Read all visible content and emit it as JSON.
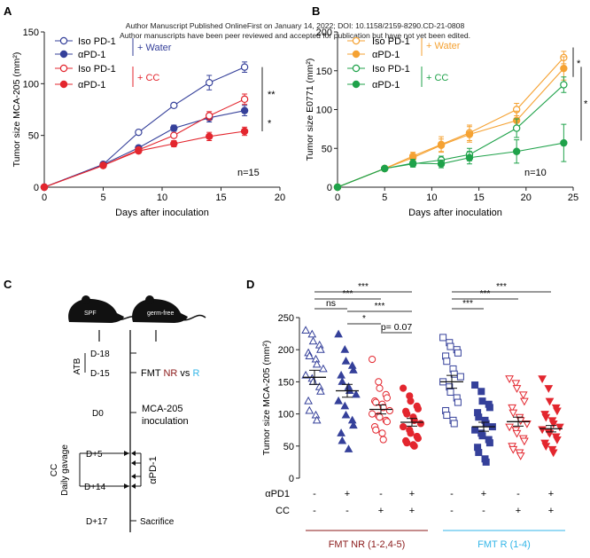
{
  "header": {
    "line1": "Author Manuscript Published OnlineFirst on January 14, 2022; DOI: 10.1158/2159-8290.CD-21-0808",
    "line2": "Author manuscripts have been peer reviewed and accepted for publication but have not yet been edited."
  },
  "colors": {
    "navy": "#35409a",
    "red": "#e3262e",
    "orange": "#f5a233",
    "green": "#1fa24a",
    "teal": "#3fb8b0",
    "gray": "#555555",
    "cyan": "#33b6e8",
    "darkred": "#8b1a1a"
  },
  "chart_data": [
    {
      "panel": "A",
      "type": "line",
      "xlabel": "Days after inoculation",
      "ylabel": "Tumor size MCA-205 (mm²)",
      "xlim": [
        0,
        20
      ],
      "ylim": [
        0,
        150
      ],
      "xticks": [
        0,
        5,
        10,
        15,
        20
      ],
      "yticks": [
        0,
        50,
        100,
        150
      ],
      "x": [
        0,
        5,
        8,
        11,
        14,
        17
      ],
      "series": [
        {
          "name": "Iso PD-1",
          "group": "water",
          "color": "#35409a",
          "fill": "open",
          "values": [
            0,
            22,
            53,
            79,
            101,
            116
          ],
          "err": [
            0,
            1,
            2,
            1,
            7,
            5
          ]
        },
        {
          "name": "αPD-1",
          "group": "water",
          "color": "#35409a",
          "fill": "solid",
          "values": [
            0,
            22,
            38,
            57,
            67,
            74
          ],
          "err": [
            0,
            1,
            2,
            3,
            4,
            5
          ]
        },
        {
          "name": "Iso PD-1",
          "group": "cc",
          "color": "#e3262e",
          "fill": "open",
          "values": [
            0,
            21,
            36,
            50,
            69,
            85
          ],
          "err": [
            0,
            1,
            2,
            2,
            4,
            5
          ]
        },
        {
          "name": "αPD-1",
          "group": "cc",
          "color": "#e3262e",
          "fill": "solid",
          "values": [
            0,
            21,
            35,
            42,
            49,
            54
          ],
          "err": [
            0,
            1,
            2,
            3,
            4,
            4
          ]
        }
      ],
      "legend_groups": [
        "+ Water",
        "+ CC"
      ],
      "group_colors": [
        "#35409a",
        "#e3262e"
      ],
      "annotations": [
        "**",
        "*",
        "n=15"
      ]
    },
    {
      "panel": "B",
      "type": "line",
      "xlabel": "Days after inoculation",
      "ylabel": "Tumor size E0771 (mm²)",
      "xlim": [
        0,
        25
      ],
      "ylim": [
        0,
        200
      ],
      "xticks": [
        0,
        5,
        10,
        15,
        20,
        25
      ],
      "yticks": [
        0,
        50,
        100,
        150,
        200
      ],
      "x": [
        0,
        5,
        8,
        11,
        14,
        19,
        24
      ],
      "series": [
        {
          "name": "Iso PD-1",
          "group": "water",
          "color": "#f5a233",
          "fill": "open",
          "values": [
            0,
            24,
            40,
            55,
            70,
            100,
            167
          ],
          "err": [
            0,
            2,
            5,
            10,
            10,
            8,
            8
          ]
        },
        {
          "name": "αPD-1",
          "group": "water",
          "color": "#f5a233",
          "fill": "solid",
          "values": [
            0,
            24,
            38,
            54,
            68,
            86,
            153
          ],
          "err": [
            0,
            2,
            5,
            8,
            10,
            12,
            15
          ]
        },
        {
          "name": "Iso PD-1",
          "group": "cc",
          "color": "#1fa24a",
          "fill": "open",
          "values": [
            0,
            24,
            30,
            35,
            42,
            76,
            132
          ],
          "err": [
            0,
            2,
            4,
            5,
            8,
            12,
            10
          ]
        },
        {
          "name": "αPD-1",
          "group": "cc",
          "color": "#1fa24a",
          "fill": "solid",
          "values": [
            0,
            24,
            31,
            30,
            38,
            46,
            57
          ],
          "err": [
            0,
            2,
            5,
            5,
            8,
            15,
            24
          ]
        }
      ],
      "legend_groups": [
        "+ Water",
        "+ CC"
      ],
      "group_colors": [
        "#f5a233",
        "#1fa24a"
      ],
      "annotations": [
        "*",
        "*",
        "n=10"
      ]
    },
    {
      "panel": "D",
      "type": "scatter",
      "ylabel": "Tumor size MCA-205 (mm²)",
      "ylim": [
        0,
        250
      ],
      "yticks": [
        0,
        50,
        100,
        150,
        200,
        250
      ],
      "groups": [
        {
          "marker": "triangle",
          "fill": "open",
          "color": "#35409a",
          "mean": 157,
          "sem": 11,
          "values": [
            230,
            224,
            213,
            207,
            200,
            195,
            190,
            185,
            177,
            170,
            160,
            155,
            150,
            142,
            135,
            120,
            105,
            98,
            90
          ]
        },
        {
          "marker": "triangle",
          "fill": "solid",
          "color": "#35409a",
          "mean": 136,
          "sem": 10,
          "values": [
            224,
            200,
            182,
            175,
            168,
            160,
            150,
            142,
            136,
            130,
            120,
            112,
            98,
            90,
            82,
            70,
            58,
            45
          ]
        },
        {
          "marker": "circle",
          "fill": "open",
          "color": "#e3262e",
          "mean": 107,
          "sem": 7,
          "values": [
            185,
            150,
            140,
            130,
            125,
            120,
            118,
            115,
            110,
            105,
            100,
            97,
            95,
            90,
            88,
            80,
            75,
            70,
            60
          ]
        },
        {
          "marker": "circle",
          "fill": "solid",
          "color": "#e3262e",
          "mean": 87,
          "sem": 6,
          "values": [
            140,
            128,
            120,
            112,
            108,
            104,
            100,
            95,
            90,
            85,
            80,
            75,
            70,
            65,
            62,
            58,
            55,
            52,
            50
          ]
        },
        {
          "marker": "square",
          "fill": "open",
          "color": "#35409a",
          "mean": 150,
          "sem": 10,
          "values": [
            219,
            211,
            205,
            200,
            195,
            190,
            182,
            170,
            162,
            158,
            150,
            142,
            134,
            125,
            118,
            105,
            98,
            90,
            85
          ]
        },
        {
          "marker": "square",
          "fill": "solid",
          "color": "#35409a",
          "mean": 80,
          "sem": 7,
          "values": [
            145,
            135,
            120,
            115,
            110,
            102,
            95,
            90,
            85,
            80,
            75,
            70,
            66,
            60,
            55,
            48,
            40,
            30,
            25
          ]
        },
        {
          "marker": "triangle-down",
          "fill": "open",
          "color": "#e3262e",
          "mean": 88,
          "sem": 7,
          "values": [
            155,
            148,
            140,
            130,
            120,
            110,
            102,
            95,
            90,
            85,
            80,
            75,
            70,
            62,
            58,
            50,
            45,
            40,
            35
          ]
        },
        {
          "marker": "triangle-down",
          "fill": "solid",
          "color": "#e3262e",
          "mean": 77,
          "sem": 5,
          "values": [
            155,
            140,
            120,
            110,
            105,
            100,
            95,
            90,
            85,
            80,
            76,
            72,
            70,
            65,
            60,
            55,
            50,
            45,
            40
          ]
        }
      ],
      "apd1_row": [
        "-",
        "+",
        "-",
        "+",
        "-",
        "+",
        "-",
        "+"
      ],
      "cc_row": [
        "-",
        "-",
        "+",
        "+",
        "-",
        "-",
        "+",
        "+"
      ],
      "row_labels": [
        "αPD1",
        "CC"
      ],
      "group_labels": [
        "FMT NR (1-2,4-5)",
        "FMT R (1-4)"
      ],
      "significance": [
        "***",
        "***",
        "ns",
        "***",
        "*",
        "p= 0.07",
        "***",
        "***",
        "***"
      ]
    }
  ],
  "panelC": {
    "label": "C",
    "mouse1": "SPF",
    "mouse2": "germ-free",
    "atb": "ATB",
    "d18": "D-18",
    "d15": "D-15",
    "fmt_prefix": "FMT",
    "fmt_nr": "NR",
    "fmt_vs": "vs",
    "fmt_r": "R",
    "d0": "D0",
    "inoc1": "MCA-205",
    "inoc2": "inoculation",
    "cc": "CC",
    "gavage": "Daily gavage",
    "d5": "D+5",
    "d14": "D+14",
    "apd1": "αPD-1",
    "d17": "D+17",
    "sacrifice": "Sacrifice"
  },
  "panel_letters": [
    "A",
    "B",
    "D"
  ]
}
